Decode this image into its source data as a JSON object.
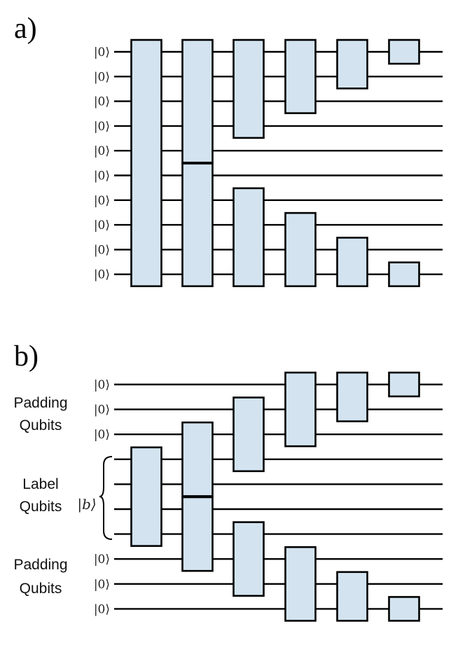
{
  "panel_a": {
    "label": "a)",
    "wire_count": 10,
    "input_kets": [
      "|0⟩",
      "|0⟩",
      "|0⟩",
      "|0⟩",
      "|0⟩",
      "|0⟩",
      "|0⟩",
      "|0⟩",
      "|0⟩",
      "|0⟩"
    ],
    "gate_columns": [
      [
        [
          1,
          10
        ]
      ],
      [
        [
          1,
          5
        ],
        [
          6,
          10
        ]
      ],
      [
        [
          1,
          4
        ],
        [
          7,
          10
        ]
      ],
      [
        [
          1,
          3
        ],
        [
          8,
          10
        ]
      ],
      [
        [
          1,
          2
        ],
        [
          9,
          10
        ]
      ],
      [
        [
          1,
          1
        ],
        [
          10,
          10
        ]
      ]
    ]
  },
  "panel_b": {
    "label": "b)",
    "wire_count": 10,
    "input_kets": [
      "|0⟩",
      "|0⟩",
      "|0⟩",
      "",
      "",
      "",
      "",
      "|0⟩",
      "|0⟩",
      "|0⟩"
    ],
    "label_state": "|b⟩",
    "top_padding_label": [
      "Padding",
      "Qubits"
    ],
    "label_qubits_label": [
      "Label",
      "Qubits"
    ],
    "bottom_padding_label": [
      "Padding",
      "Qubits"
    ],
    "gate_columns": [
      [
        [
          4,
          7
        ]
      ],
      [
        [
          3,
          5
        ],
        [
          6,
          8
        ]
      ],
      [
        [
          2,
          4
        ],
        [
          7,
          9
        ]
      ],
      [
        [
          1,
          3
        ],
        [
          8,
          10
        ]
      ],
      [
        [
          1,
          2
        ],
        [
          9,
          10
        ]
      ],
      [
        [
          1,
          1
        ],
        [
          10,
          10
        ]
      ]
    ]
  }
}
